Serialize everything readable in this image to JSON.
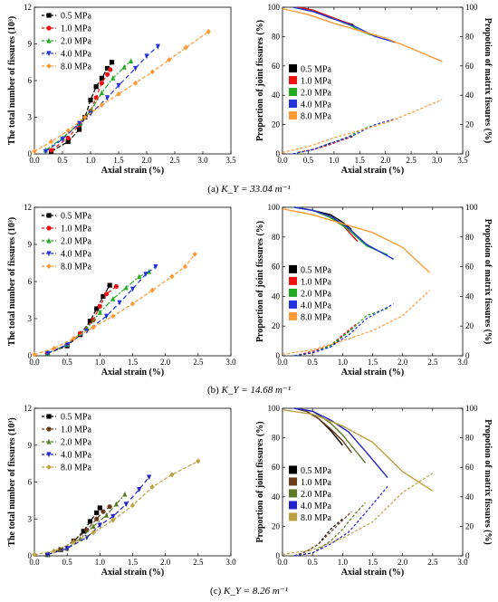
{
  "pressures": [
    "0.5 MPa",
    "1.0 MPa",
    "2.0 MPa",
    "4.0 MPa",
    "8.0 MPa"
  ],
  "colors": [
    "#000000",
    "#ee1111",
    "#22aa22",
    "#2233dd",
    "#ff9933"
  ],
  "colors_c": [
    "#000000",
    "#6b3a1a",
    "#5a7a2a",
    "#2222cc",
    "#bba040"
  ],
  "left_labels": {
    "x": "Axial strain (%)",
    "y": "The total number of fissures (10³)"
  },
  "right_labels": {
    "x": "Axial strain (%)",
    "y_left": "Proportion of joint fissures (%)",
    "y_right": "Propotion of matrix fissures (%)"
  },
  "captions": [
    {
      "tag": "(a)",
      "text": "K_Y = 33.04 m⁻¹"
    },
    {
      "tag": "(b)",
      "text": "K_Y = 14.68 m⁻¹"
    },
    {
      "tag": "(c)",
      "text": "K_Y = 8.26 m⁻¹"
    }
  ],
  "chart_data": [
    {
      "type": "line",
      "panel": "a-left",
      "xlabel": "Axial strain (%)",
      "ylabel": "The total number of fissures (10³)",
      "xlim": [
        0,
        3.5
      ],
      "ylim": [
        0,
        12
      ],
      "xticks": [
        0.0,
        0.5,
        1.0,
        1.5,
        2.0,
        2.5,
        3.0,
        3.5
      ],
      "yticks": [
        0,
        3,
        6,
        9,
        12
      ],
      "series": [
        {
          "name": "0.5 MPa",
          "x": [
            0.3,
            0.6,
            0.8,
            0.9,
            1.0,
            1.1,
            1.2,
            1.3,
            1.38
          ],
          "y": [
            0.2,
            1.0,
            2.0,
            3.0,
            4.4,
            5.5,
            6.2,
            7.0,
            7.5
          ]
        },
        {
          "name": "1.0 MPa",
          "x": [
            0.3,
            0.6,
            0.8,
            1.0,
            1.1,
            1.2,
            1.3,
            1.35
          ],
          "y": [
            0.3,
            1.3,
            2.4,
            3.5,
            4.6,
            5.8,
            6.5,
            6.9
          ]
        },
        {
          "name": "2.0 MPa",
          "x": [
            0.2,
            0.5,
            0.8,
            1.0,
            1.2,
            1.4,
            1.6,
            1.72
          ],
          "y": [
            0.3,
            1.3,
            2.5,
            3.5,
            5.0,
            6.2,
            7.1,
            7.6
          ]
        },
        {
          "name": "4.0 MPa",
          "x": [
            0.2,
            0.5,
            0.8,
            1.0,
            1.3,
            1.5,
            1.8,
            2.0,
            2.2
          ],
          "y": [
            0.2,
            1.2,
            2.5,
            3.3,
            4.6,
            5.6,
            7.0,
            8.0,
            8.8
          ]
        },
        {
          "name": "8.0 MPa",
          "x": [
            0.0,
            0.3,
            0.6,
            0.9,
            1.2,
            1.5,
            1.8,
            2.1,
            2.4,
            2.7,
            3.1
          ],
          "y": [
            0.2,
            1.0,
            1.9,
            3.0,
            4.0,
            4.9,
            5.8,
            6.7,
            7.7,
            8.7,
            10.0
          ]
        }
      ]
    },
    {
      "type": "line",
      "panel": "a-right",
      "xlabel": "Axial strain (%)",
      "ylabel": "Proportion of joint fissures (%)",
      "y2label": "Propotion of matrix fissures (%)",
      "xlim": [
        0,
        3.5
      ],
      "ylim": [
        0,
        100
      ],
      "xticks": [
        0.0,
        0.5,
        1.0,
        1.5,
        2.0,
        2.5,
        3.0,
        3.5
      ],
      "yticks": [
        0,
        20,
        40,
        60,
        80,
        100
      ],
      "series": [
        {
          "name": "0.5 MPa",
          "x": [
            0.3,
            0.6,
            0.9,
            1.2,
            1.38
          ],
          "joint": [
            100,
            98,
            93,
            90,
            88
          ],
          "matrix": [
            1,
            3,
            7,
            10,
            12
          ]
        },
        {
          "name": "1.0 MPa",
          "x": [
            0.3,
            0.6,
            0.9,
            1.2,
            1.35
          ],
          "joint": [
            100,
            98,
            94,
            90,
            88
          ],
          "matrix": [
            1,
            3,
            6,
            10,
            12
          ]
        },
        {
          "name": "2.0 MPa",
          "x": [
            0.2,
            0.6,
            1.0,
            1.3,
            1.5,
            1.72
          ],
          "joint": [
            100,
            97,
            92,
            88,
            84,
            81
          ],
          "matrix": [
            0,
            3,
            8,
            12,
            16,
            19
          ]
        },
        {
          "name": "4.0 MPa",
          "x": [
            0.2,
            0.6,
            1.0,
            1.4,
            1.8,
            2.2
          ],
          "joint": [
            100,
            97,
            92,
            87,
            80,
            76
          ],
          "matrix": [
            0,
            3,
            8,
            13,
            20,
            24
          ]
        },
        {
          "name": "8.0 MPa",
          "x": [
            0.0,
            0.5,
            1.0,
            1.5,
            2.0,
            2.5,
            3.1
          ],
          "joint": [
            99,
            95,
            89,
            84,
            79,
            72,
            63
          ],
          "matrix": [
            1,
            5,
            11,
            16,
            21,
            28,
            37
          ]
        }
      ]
    },
    {
      "type": "line",
      "panel": "b-left",
      "xlabel": "Axial strain (%)",
      "ylabel": "The total number of fissures (10³)",
      "xlim": [
        0,
        3.0
      ],
      "ylim": [
        0,
        12
      ],
      "xticks": [
        0.0,
        0.5,
        1.0,
        1.5,
        2.0,
        2.5,
        3.0
      ],
      "yticks": [
        0,
        3,
        6,
        9,
        12
      ],
      "series": [
        {
          "name": "0.5 MPa",
          "x": [
            0.2,
            0.5,
            0.7,
            0.85,
            0.95,
            1.05,
            1.15
          ],
          "y": [
            0.2,
            0.8,
            1.7,
            2.8,
            3.8,
            4.8,
            5.7
          ]
        },
        {
          "name": "1.0 MPa",
          "x": [
            0.2,
            0.5,
            0.7,
            0.9,
            1.0,
            1.1,
            1.25
          ],
          "y": [
            0.2,
            0.9,
            1.8,
            2.9,
            4.0,
            5.0,
            5.6
          ]
        },
        {
          "name": "2.0 MPa",
          "x": [
            0.2,
            0.5,
            0.8,
            1.0,
            1.2,
            1.4,
            1.6,
            1.75
          ],
          "y": [
            0.2,
            0.9,
            2.2,
            3.5,
            4.6,
            5.5,
            6.4,
            6.8
          ]
        },
        {
          "name": "4.0 MPa",
          "x": [
            0.2,
            0.5,
            0.8,
            1.1,
            1.3,
            1.5,
            1.7,
            1.85
          ],
          "y": [
            0.2,
            0.9,
            2.0,
            3.2,
            4.3,
            5.4,
            6.6,
            7.2
          ]
        },
        {
          "name": "8.0 MPa",
          "x": [
            0.0,
            0.3,
            0.6,
            0.9,
            1.2,
            1.5,
            1.8,
            2.1,
            2.3,
            2.45
          ],
          "y": [
            0.1,
            0.6,
            1.4,
            2.3,
            3.2,
            4.2,
            5.3,
            6.4,
            7.2,
            8.2
          ]
        }
      ]
    },
    {
      "type": "line",
      "panel": "b-right",
      "xlabel": "Axial strain (%)",
      "ylabel": "Proportion of joint fissures (%)",
      "y2label": "Propotion of matrix fissures (%)",
      "xlim": [
        0,
        3.0
      ],
      "ylim": [
        0,
        100
      ],
      "xticks": [
        0.0,
        0.5,
        1.0,
        1.5,
        2.0,
        2.5,
        3.0
      ],
      "yticks": [
        0,
        20,
        40,
        60,
        80,
        100
      ],
      "series": [
        {
          "name": "0.5 MPa",
          "x": [
            0.2,
            0.5,
            0.8,
            1.0,
            1.15
          ],
          "joint": [
            100,
            98,
            95,
            90,
            85
          ],
          "matrix": [
            0,
            2,
            6,
            13,
            18
          ]
        },
        {
          "name": "1.0 MPa",
          "x": [
            0.2,
            0.5,
            0.8,
            1.0,
            1.25
          ],
          "joint": [
            100,
            98,
            94,
            88,
            77
          ],
          "matrix": [
            0,
            3,
            7,
            14,
            22
          ]
        },
        {
          "name": "2.0 MPa",
          "x": [
            0.2,
            0.5,
            0.8,
            1.1,
            1.4,
            1.75
          ],
          "joint": [
            100,
            98,
            93,
            85,
            74,
            68
          ],
          "matrix": [
            0,
            2,
            7,
            16,
            27,
            32
          ]
        },
        {
          "name": "4.0 MPa",
          "x": [
            0.2,
            0.5,
            0.8,
            1.1,
            1.4,
            1.85
          ],
          "joint": [
            100,
            98,
            94,
            86,
            75,
            65
          ],
          "matrix": [
            0,
            2,
            6,
            14,
            25,
            35
          ]
        },
        {
          "name": "8.0 MPa",
          "x": [
            0.0,
            0.5,
            1.0,
            1.5,
            2.0,
            2.45
          ],
          "joint": [
            99,
            95,
            89,
            83,
            73,
            56
          ],
          "matrix": [
            1,
            4,
            10,
            17,
            27,
            44
          ]
        }
      ]
    },
    {
      "type": "line",
      "panel": "c-left",
      "xlabel": "Axial strain (%)",
      "ylabel": "The total number of fissures (10³)",
      "xlim": [
        0,
        3.0
      ],
      "ylim": [
        0,
        12
      ],
      "xticks": [
        0.0,
        0.5,
        1.0,
        1.5,
        2.0,
        2.5,
        3.0
      ],
      "yticks": [
        0,
        3,
        6,
        9,
        12
      ],
      "series": [
        {
          "name": "0.5 MPa",
          "x": [
            0.2,
            0.4,
            0.6,
            0.75,
            0.85,
            0.95,
            1.0
          ],
          "y": [
            0.1,
            0.5,
            1.2,
            2.0,
            2.8,
            3.5,
            3.9
          ]
        },
        {
          "name": "1.0 MPa",
          "x": [
            0.2,
            0.4,
            0.6,
            0.8,
            0.95,
            1.05,
            1.15
          ],
          "y": [
            0.1,
            0.5,
            1.2,
            2.1,
            3.0,
            3.6,
            4.0
          ]
        },
        {
          "name": "2.0 MPa",
          "x": [
            0.2,
            0.5,
            0.7,
            0.9,
            1.1,
            1.25,
            1.38
          ],
          "y": [
            0.1,
            0.6,
            1.4,
            2.4,
            3.3,
            4.2,
            5.0
          ]
        },
        {
          "name": "4.0 MPa",
          "x": [
            0.2,
            0.5,
            0.8,
            1.0,
            1.2,
            1.4,
            1.6,
            1.75
          ],
          "y": [
            0.1,
            0.6,
            1.5,
            2.5,
            3.2,
            4.2,
            5.4,
            6.4
          ]
        },
        {
          "name": "8.0 MPa",
          "x": [
            0.0,
            0.3,
            0.6,
            0.9,
            1.2,
            1.5,
            1.8,
            2.1,
            2.5
          ],
          "y": [
            0.1,
            0.4,
            1.1,
            1.9,
            2.9,
            4.1,
            5.6,
            6.6,
            7.7
          ]
        }
      ]
    },
    {
      "type": "line",
      "panel": "c-right",
      "xlabel": "Axial strain (%)",
      "ylabel": "Proportion of joint fissures (%)",
      "y2label": "Propotion of matrix fissures (%)",
      "xlim": [
        0,
        3.0
      ],
      "ylim": [
        0,
        100
      ],
      "xticks": [
        0.0,
        0.5,
        1.0,
        1.5,
        2.0,
        2.5,
        3.0
      ],
      "yticks": [
        0,
        20,
        40,
        60,
        80,
        100
      ],
      "series": [
        {
          "name": "0.5 MPa",
          "x": [
            0.2,
            0.4,
            0.6,
            0.8,
            1.0
          ],
          "joint": [
            100,
            98,
            93,
            85,
            75
          ],
          "matrix": [
            0,
            3,
            8,
            18,
            25
          ]
        },
        {
          "name": "1.0 MPa",
          "x": [
            0.2,
            0.4,
            0.6,
            0.8,
            1.0,
            1.15
          ],
          "joint": [
            100,
            98,
            93,
            86,
            78,
            70
          ],
          "matrix": [
            0,
            3,
            8,
            16,
            24,
            30
          ]
        },
        {
          "name": "2.0 MPa",
          "x": [
            0.2,
            0.5,
            0.8,
            1.0,
            1.2,
            1.38
          ],
          "joint": [
            100,
            98,
            90,
            82,
            72,
            63
          ],
          "matrix": [
            0,
            2,
            10,
            18,
            28,
            36
          ]
        },
        {
          "name": "4.0 MPa",
          "x": [
            0.2,
            0.5,
            0.8,
            1.1,
            1.4,
            1.75
          ],
          "joint": [
            100,
            98,
            92,
            84,
            70,
            53
          ],
          "matrix": [
            0,
            2,
            8,
            16,
            30,
            47
          ]
        },
        {
          "name": "8.0 MPa",
          "x": [
            0.0,
            0.5,
            1.0,
            1.5,
            2.0,
            2.5
          ],
          "joint": [
            99,
            96,
            88,
            77,
            57,
            44
          ],
          "matrix": [
            1,
            4,
            12,
            23,
            43,
            56
          ]
        }
      ]
    }
  ]
}
